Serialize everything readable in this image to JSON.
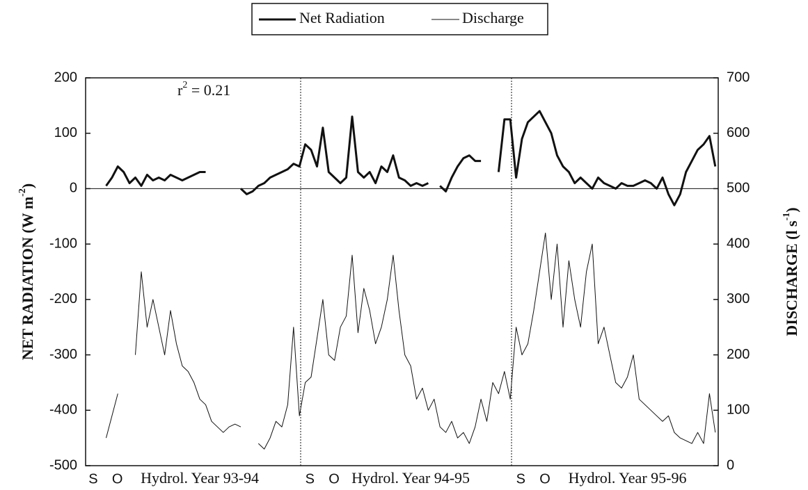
{
  "chart_data": {
    "type": "line",
    "annotation": [
      "r",
      "2",
      " = 0.21"
    ],
    "y_label": [
      "NET RADIATION (W m",
      "-2",
      ")"
    ],
    "y2_label": [
      "DISCHARGE (l s",
      "-1",
      ")"
    ],
    "legend": "top",
    "categories": [
      "S",
      null,
      null,
      null,
      "O",
      null,
      null,
      null,
      null,
      null,
      null,
      null,
      null,
      null,
      null,
      null,
      null,
      null,
      null,
      "Hydrol. Year 93-94",
      null,
      null,
      null,
      null,
      null,
      null,
      null,
      null,
      null,
      null,
      null,
      null,
      null,
      null,
      null,
      null,
      null,
      "S",
      null,
      null,
      null,
      "O",
      null,
      null,
      null,
      null,
      null,
      null,
      null,
      null,
      null,
      null,
      null,
      null,
      null,
      "Hydrol. Year 94-95",
      null,
      null,
      null,
      null,
      null,
      null,
      null,
      null,
      null,
      null,
      null,
      null,
      null,
      null,
      null,
      null,
      null,
      "S",
      null,
      null,
      null,
      "O",
      null,
      null,
      null,
      null,
      null,
      null,
      null,
      null,
      null,
      null,
      null,
      null,
      null,
      null,
      "Hydrol. Year 95-96",
      null,
      null,
      null,
      null,
      null,
      null,
      null,
      null,
      null,
      null,
      null,
      null,
      null,
      null,
      null
    ],
    "series": [
      {
        "name": "Net Radiation",
        "color": "#111111",
        "width": 3,
        "values": [
          null,
          null,
          null,
          5,
          20,
          40,
          30,
          10,
          20,
          5,
          25,
          15,
          20,
          15,
          25,
          20,
          15,
          20,
          25,
          30,
          30,
          null,
          null,
          null,
          null,
          null,
          0,
          -10,
          -5,
          5,
          10,
          20,
          25,
          30,
          35,
          45,
          40,
          80,
          70,
          40,
          110,
          30,
          20,
          10,
          20,
          130,
          30,
          20,
          30,
          10,
          40,
          30,
          60,
          20,
          15,
          5,
          10,
          5,
          10,
          null,
          5,
          -5,
          20,
          40,
          55,
          60,
          50,
          50,
          null,
          null,
          30,
          125,
          125,
          20,
          90,
          120,
          130,
          140,
          120,
          100,
          60,
          40,
          30,
          10,
          20,
          10,
          0,
          20,
          10,
          5,
          0,
          10,
          5,
          5,
          10,
          15,
          10,
          0,
          20,
          -10,
          -30,
          -10,
          30,
          50,
          70,
          80,
          95,
          40
        ]
      },
      {
        "name": "Discharge",
        "color": "#111111",
        "width": 1,
        "axis": "y2",
        "values": [
          null,
          null,
          null,
          50,
          90,
          130,
          null,
          null,
          200,
          350,
          250,
          300,
          250,
          200,
          280,
          220,
          180,
          170,
          150,
          120,
          110,
          80,
          70,
          60,
          70,
          75,
          70,
          null,
          null,
          40,
          30,
          50,
          80,
          70,
          110,
          250,
          90,
          150,
          160,
          230,
          300,
          200,
          190,
          250,
          270,
          380,
          240,
          320,
          280,
          220,
          250,
          300,
          380,
          280,
          200,
          180,
          120,
          140,
          100,
          120,
          70,
          60,
          80,
          50,
          60,
          40,
          70,
          120,
          80,
          150,
          130,
          170,
          120,
          250,
          200,
          220,
          280,
          350,
          420,
          300,
          400,
          250,
          370,
          300,
          250,
          350,
          400,
          220,
          250,
          200,
          150,
          140,
          160,
          200,
          120,
          110,
          100,
          90,
          80,
          90,
          60,
          50,
          45,
          40,
          60,
          40,
          130,
          60
        ]
      }
    ],
    "ylim": [
      -500,
      200
    ],
    "yticks": [
      -500,
      -400,
      -300,
      -200,
      -100,
      0,
      100,
      200
    ],
    "y2lim": [
      0,
      700
    ],
    "y2ticks": [
      0,
      100,
      200,
      300,
      400,
      500,
      600,
      700
    ],
    "zero_line": true
  }
}
